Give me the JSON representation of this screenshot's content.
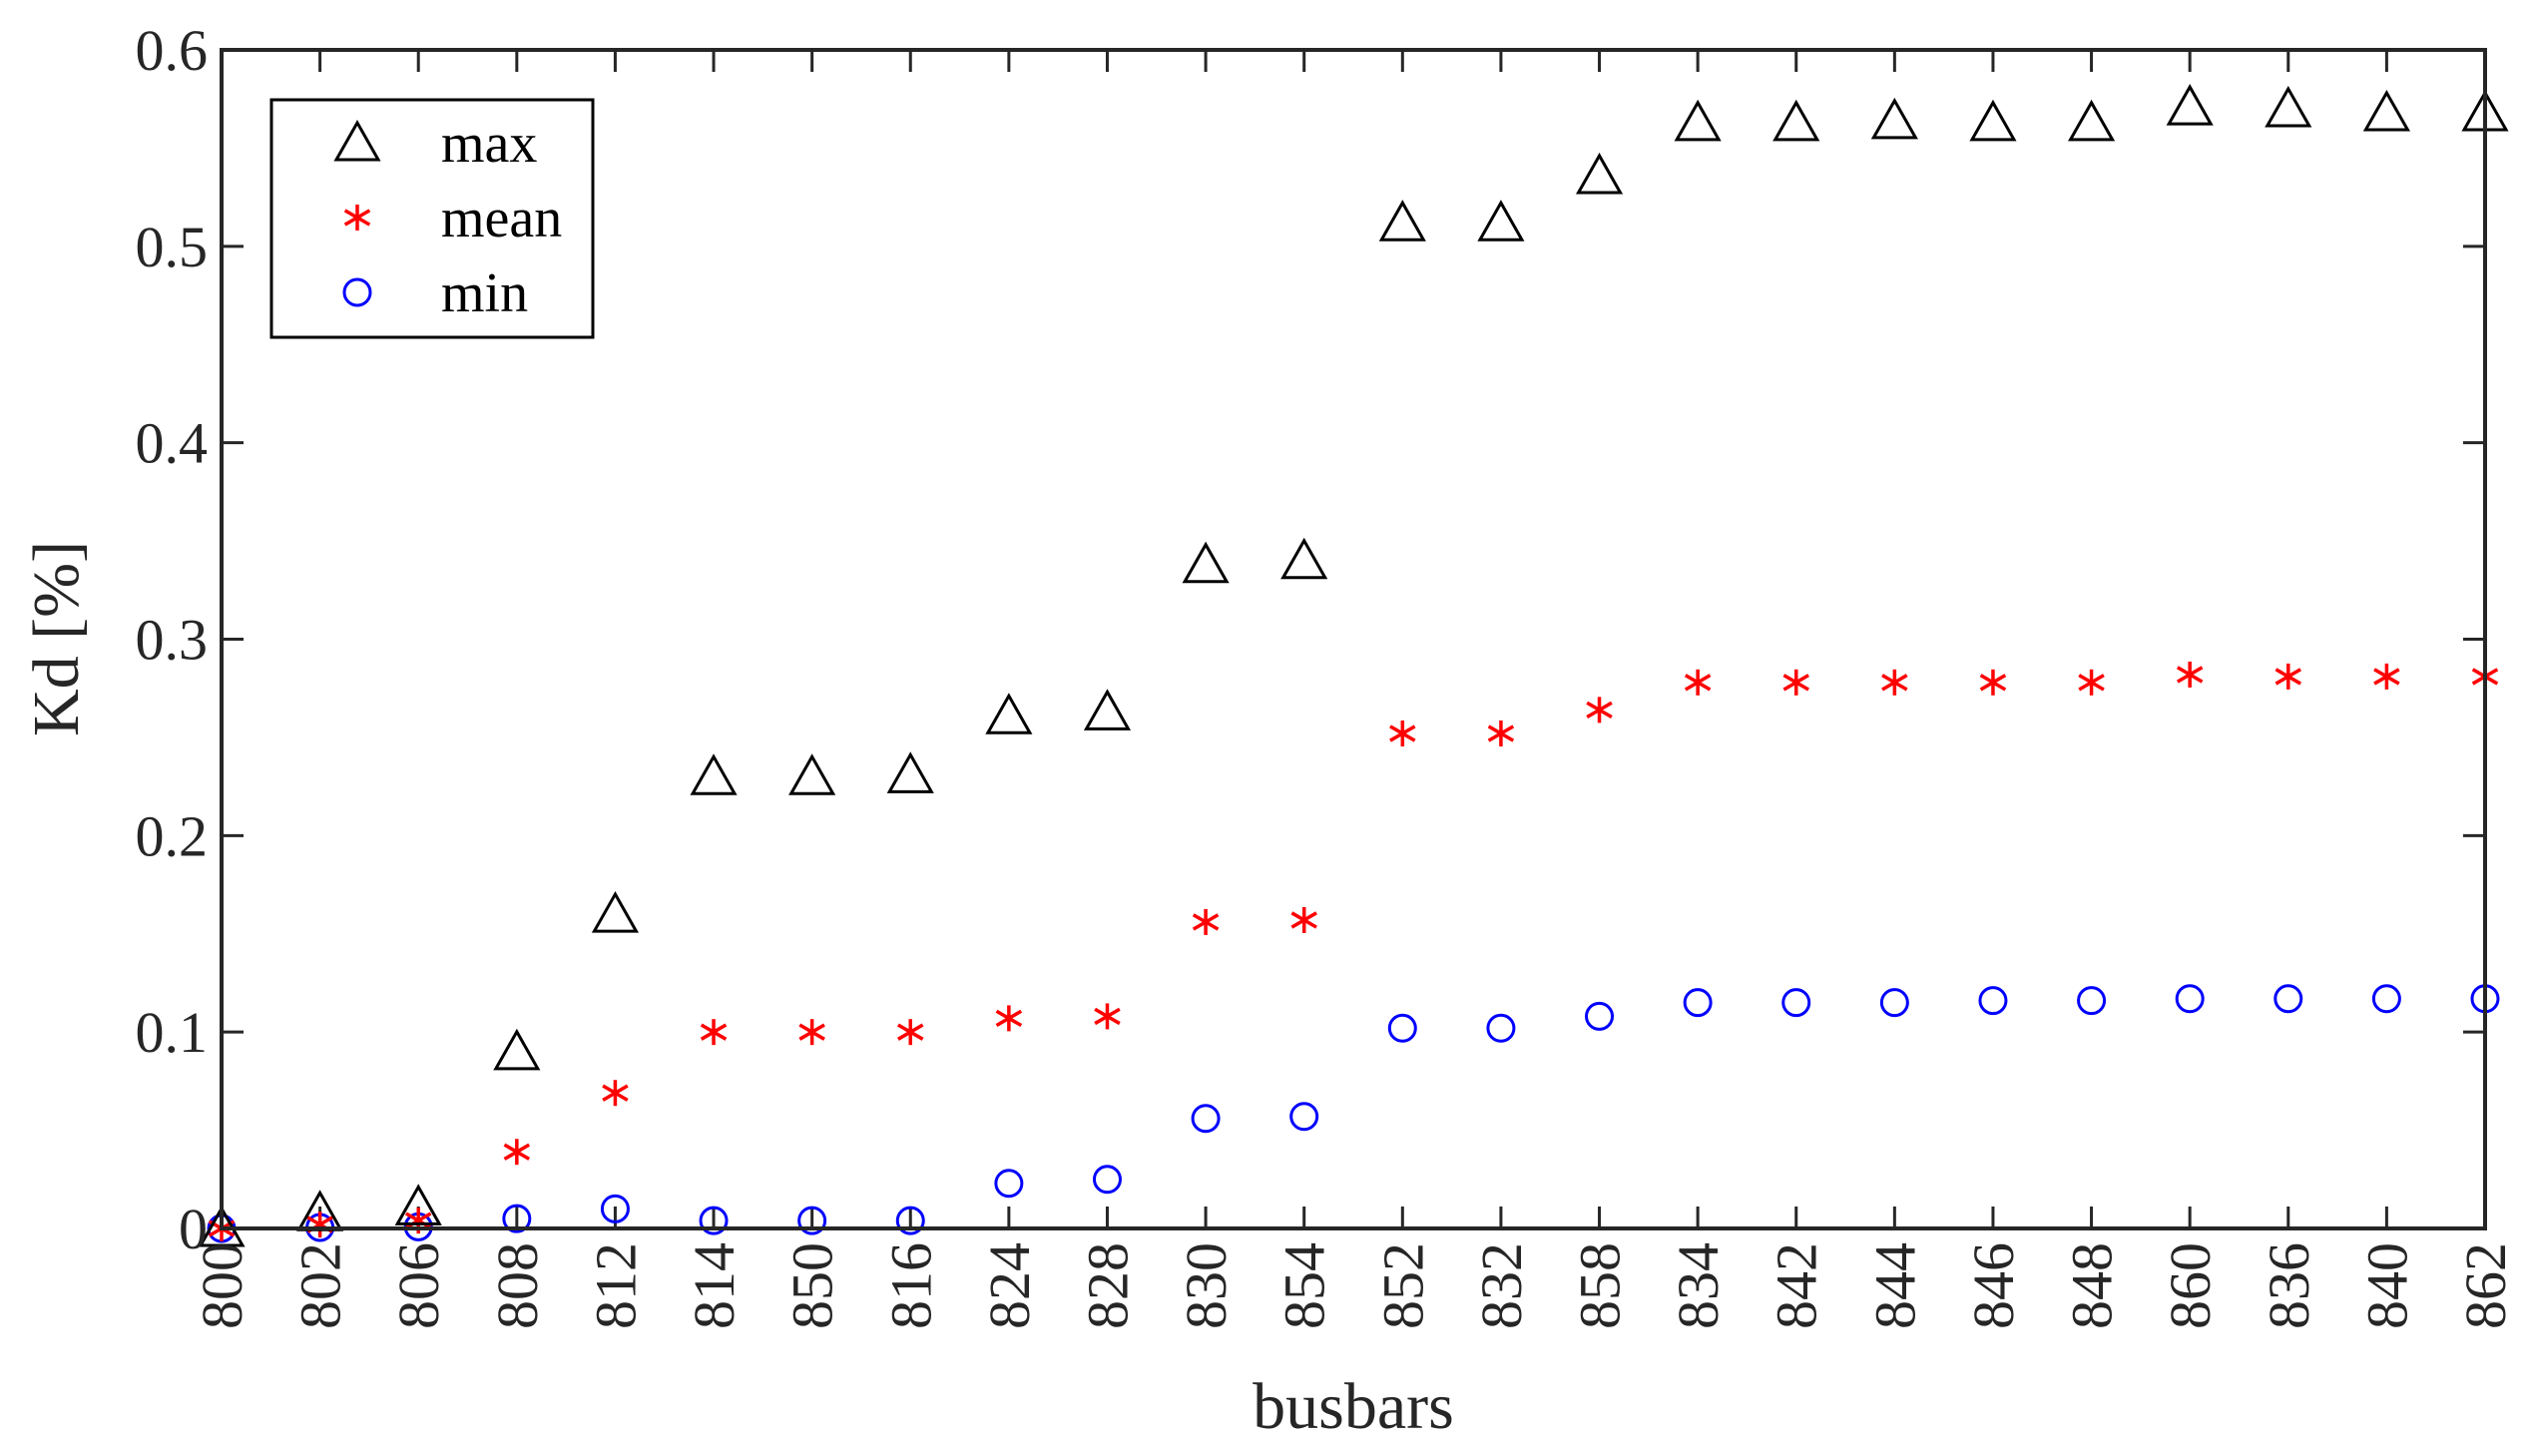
{
  "chart_data": {
    "type": "scatter",
    "categories": [
      "800",
      "802",
      "806",
      "808",
      "812",
      "814",
      "850",
      "816",
      "824",
      "828",
      "830",
      "854",
      "852",
      "832",
      "858",
      "834",
      "842",
      "844",
      "846",
      "848",
      "860",
      "836",
      "840",
      "862"
    ],
    "series": [
      {
        "name": "max",
        "marker": "triangle-icon",
        "color": "#000000",
        "values": [
          0,
          0.008,
          0.011,
          0.09,
          0.16,
          0.23,
          0.23,
          0.231,
          0.261,
          0.263,
          0.338,
          0.34,
          0.512,
          0.512,
          0.536,
          0.563,
          0.563,
          0.564,
          0.563,
          0.563,
          0.571,
          0.57,
          0.568,
          0.568
        ]
      },
      {
        "name": "mean",
        "marker": "asterisk-icon",
        "color": "#ff0000",
        "values": [
          0,
          0.002,
          0.004,
          0.039,
          0.069,
          0.1,
          0.1,
          0.1,
          0.107,
          0.108,
          0.156,
          0.157,
          0.252,
          0.252,
          0.264,
          0.278,
          0.278,
          0.278,
          0.278,
          0.278,
          0.282,
          0.281,
          0.281,
          0.281
        ]
      },
      {
        "name": "min",
        "marker": "circle-icon",
        "color": "#0000ff",
        "values": [
          0,
          0.0005,
          0.0008,
          0.005,
          0.01,
          0.004,
          0.004,
          0.004,
          0.023,
          0.025,
          0.056,
          0.057,
          0.102,
          0.102,
          0.108,
          0.115,
          0.115,
          0.115,
          0.116,
          0.116,
          0.117,
          0.117,
          0.117,
          0.117
        ]
      }
    ],
    "xlabel": "busbars",
    "ylabel": "Kd [%]",
    "ylim": [
      0,
      0.6
    ],
    "yticks": [
      "0",
      "0.1",
      "0.2",
      "0.3",
      "0.4",
      "0.5",
      "0.6"
    ],
    "grid": false,
    "legend_position": "top-left"
  }
}
